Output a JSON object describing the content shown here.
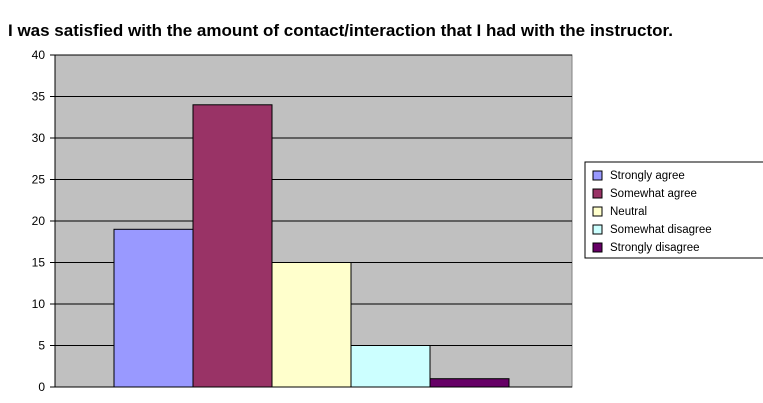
{
  "chart_data": {
    "type": "bar",
    "title": "I was satisfied with the amount of contact/interaction that I had with the instructor.",
    "xlabel": "",
    "ylabel": "",
    "ylim": [
      0,
      40
    ],
    "yticks": [
      0,
      5,
      10,
      15,
      20,
      25,
      30,
      35,
      40
    ],
    "grid": true,
    "legend_position": "right",
    "plot_background": "#c0c0c0",
    "series": [
      {
        "name": "Strongly agree",
        "value": 19,
        "color": "#9999ff"
      },
      {
        "name": "Somewhat agree",
        "value": 34,
        "color": "#993366"
      },
      {
        "name": "Neutral",
        "value": 15,
        "color": "#ffffcc"
      },
      {
        "name": "Somewhat disagree",
        "value": 5,
        "color": "#ccffff"
      },
      {
        "name": "Strongly disagree",
        "value": 1,
        "color": "#660066"
      }
    ]
  }
}
